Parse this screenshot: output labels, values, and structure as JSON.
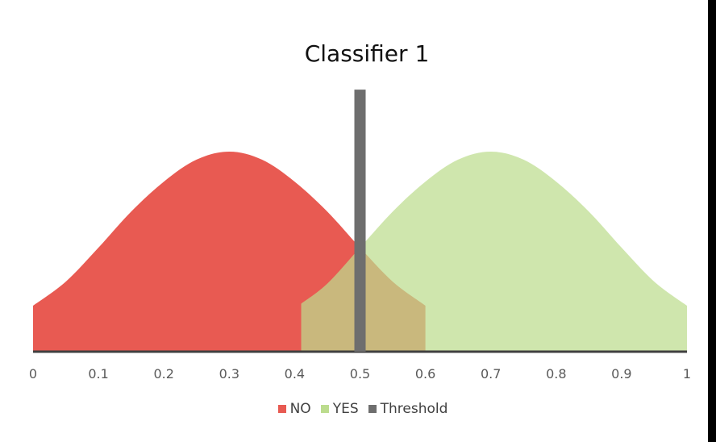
{
  "chart_data": {
    "type": "area",
    "title": "Classifier 1",
    "xlabel": "",
    "ylabel": "",
    "xlim": [
      0,
      1
    ],
    "ylim": [
      0,
      1
    ],
    "x_ticks": [
      "0",
      "0.1",
      "0.2",
      "0.3",
      "0.4",
      "0.5",
      "0.6",
      "0.7",
      "0.8",
      "0.9",
      "1"
    ],
    "grid": false,
    "legend_position": "bottom",
    "series": [
      {
        "name": "NO",
        "color": "#e85a52",
        "x": [
          0.0,
          0.05,
          0.1,
          0.15,
          0.2,
          0.25,
          0.3,
          0.35,
          0.4,
          0.45,
          0.5,
          0.55,
          0.6
        ],
        "y": [
          0.23,
          0.35,
          0.52,
          0.7,
          0.85,
          0.96,
          1.0,
          0.96,
          0.85,
          0.7,
          0.52,
          0.35,
          0.23
        ]
      },
      {
        "name": "YES",
        "color": "#bcdc8e",
        "x": [
          0.41,
          0.45,
          0.5,
          0.55,
          0.6,
          0.65,
          0.7,
          0.75,
          0.8,
          0.85,
          0.9,
          0.95,
          1.0
        ],
        "y": [
          0.24,
          0.34,
          0.52,
          0.7,
          0.85,
          0.96,
          1.0,
          0.96,
          0.85,
          0.7,
          0.52,
          0.35,
          0.23
        ]
      },
      {
        "name": "Threshold",
        "color": "#6e6e6e",
        "type": "vline",
        "x": 0.5,
        "y": 1.31
      }
    ]
  }
}
